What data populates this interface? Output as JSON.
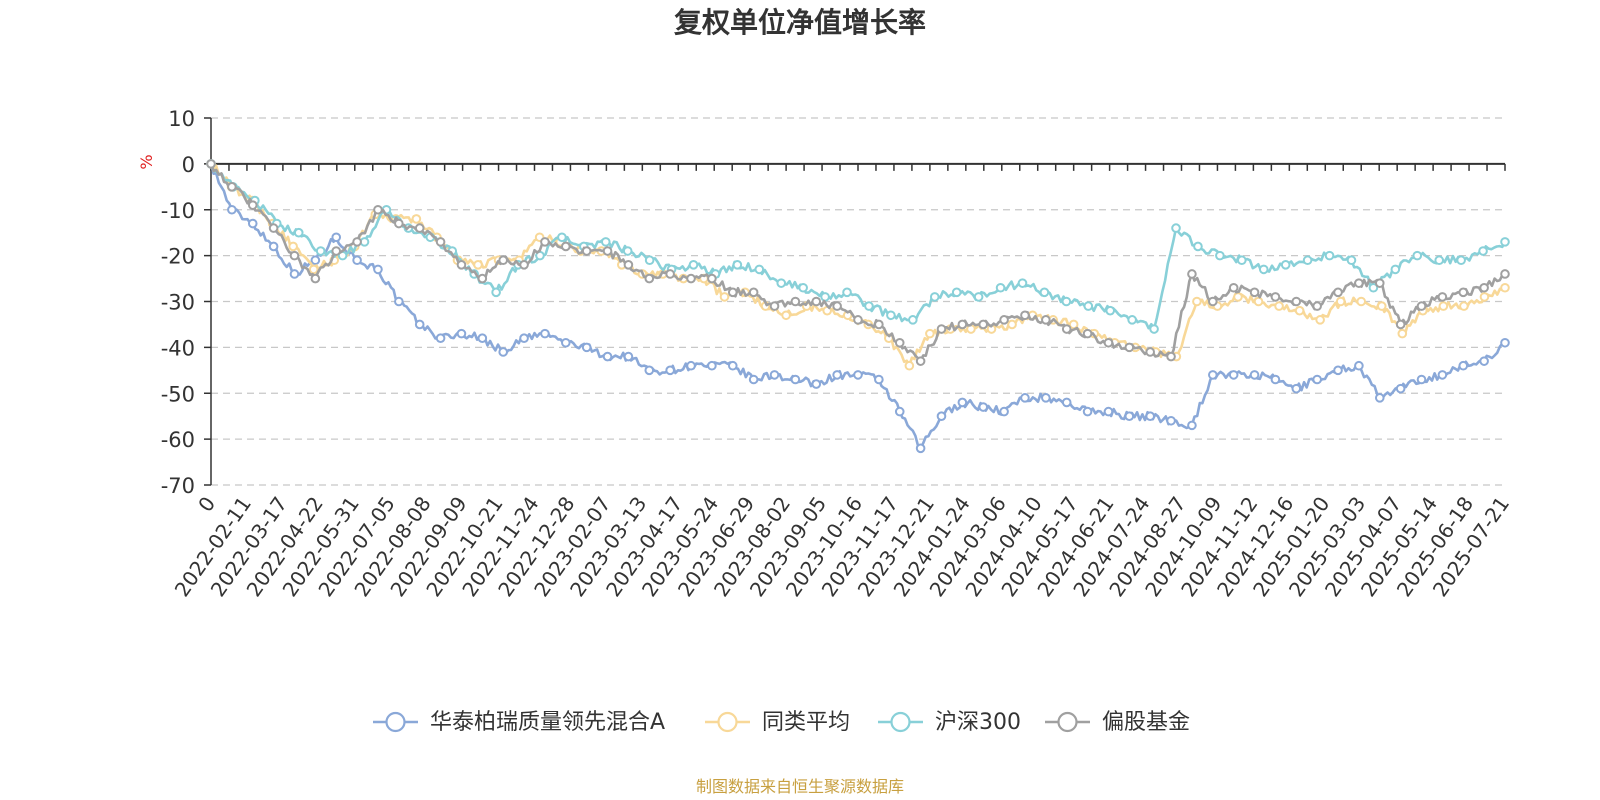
{
  "chart_data": {
    "type": "line",
    "title": "复权单位净值增长率",
    "y_unit": "%",
    "ylim": [
      -70,
      10
    ],
    "y_ticks": [
      "10",
      "0",
      "-10",
      "-20",
      "-30",
      "-40",
      "-50",
      "-60",
      "-70"
    ],
    "x_origin_label": "0",
    "x_tick_labels": [
      "2022-02-11",
      "2022-03-17",
      "2022-04-22",
      "2022-05-31",
      "2022-07-05",
      "2022-08-08",
      "2022-09-09",
      "2022-10-21",
      "2022-11-24",
      "2022-12-28",
      "2023-02-07",
      "2023-03-13",
      "2023-04-17",
      "2023-05-24",
      "2023-06-29",
      "2023-08-02",
      "2023-09-05",
      "2023-10-16",
      "2023-11-17",
      "2023-12-21",
      "2024-01-24",
      "2024-03-06",
      "2024-04-10",
      "2024-05-17",
      "2024-06-21",
      "2024-07-24",
      "2024-08-27",
      "2024-10-09",
      "2024-11-12",
      "2024-12-16",
      "2025-01-20",
      "2025-03-03",
      "2025-04-07",
      "2025-05-14",
      "2025-06-18",
      "2025-07-21"
    ],
    "grid": "horizontal-dashed",
    "legend_position": "bottom-center",
    "series": [
      {
        "name": "华泰柏瑞质量领先混合A",
        "color": "#8aa8d8",
        "values": [
          0,
          -10,
          -13,
          -18,
          -24,
          -21,
          -16,
          -21,
          -23,
          -30,
          -35,
          -38,
          -37,
          -38,
          -41,
          -38,
          -37,
          -39,
          -40,
          -42,
          -42,
          -45,
          -45,
          -44,
          -44,
          -44,
          -47,
          -46,
          -47,
          -48,
          -46,
          -46,
          -47,
          -54,
          -62,
          -55,
          -52,
          -53,
          -54,
          -51,
          -51,
          -52,
          -54,
          -54,
          -55,
          -55,
          -56,
          -57,
          -46,
          -46,
          -46,
          -47,
          -49,
          -47,
          -45,
          -44,
          -51,
          -49,
          -47,
          -46,
          -44,
          -43,
          -39
        ]
      },
      {
        "name": "同类平均",
        "color": "#f8d898",
        "values": [
          0,
          -5,
          -8,
          -13,
          -18,
          -23,
          -21,
          -18,
          -11,
          -12,
          -12,
          -16,
          -21,
          -22,
          -21,
          -21,
          -16,
          -17,
          -19,
          -19,
          -22,
          -24,
          -24,
          -25,
          -25,
          -29,
          -28,
          -31,
          -33,
          -31,
          -32,
          -33,
          -35,
          -38,
          -44,
          -37,
          -36,
          -36,
          -36,
          -35,
          -33,
          -34,
          -35,
          -37,
          -39,
          -40,
          -41,
          -42,
          -30,
          -31,
          -29,
          -30,
          -31,
          -32,
          -34,
          -30,
          -30,
          -31,
          -37,
          -32,
          -31,
          -31,
          -29,
          -27
        ]
      },
      {
        "name": "沪深300",
        "color": "#88d0d8",
        "values": [
          0,
          -5,
          -8,
          -13,
          -15,
          -19,
          -20,
          -17,
          -10,
          -14,
          -16,
          -19,
          -24,
          -28,
          -22,
          -20,
          -16,
          -18,
          -17,
          -19,
          -21,
          -23,
          -22,
          -24,
          -22,
          -23,
          -26,
          -27,
          -29,
          -28,
          -31,
          -33,
          -34,
          -29,
          -28,
          -29,
          -27,
          -26,
          -28,
          -30,
          -31,
          -32,
          -34,
          -36,
          -14,
          -18,
          -20,
          -21,
          -23,
          -22,
          -21,
          -20,
          -21,
          -27,
          -23,
          -20,
          -21,
          -21,
          -19,
          -17
        ]
      },
      {
        "name": "偏股基金",
        "color": "#a0a0a0",
        "values": [
          0,
          -5,
          -9,
          -14,
          -20,
          -25,
          -19,
          -17,
          -10,
          -13,
          -14,
          -17,
          -22,
          -25,
          -21,
          -22,
          -17,
          -18,
          -19,
          -19,
          -22,
          -25,
          -24,
          -25,
          -25,
          -28,
          -28,
          -31,
          -30,
          -30,
          -31,
          -34,
          -35,
          -39,
          -43,
          -36,
          -35,
          -35,
          -34,
          -33,
          -34,
          -36,
          -37,
          -39,
          -40,
          -41,
          -42,
          -24,
          -30,
          -27,
          -28,
          -29,
          -30,
          -31,
          -28,
          -26,
          -26,
          -35,
          -31,
          -29,
          -28,
          -27,
          -24
        ]
      }
    ]
  },
  "legend": {
    "items": [
      "华泰柏瑞质量领先混合A",
      "同类平均",
      "沪深300",
      "偏股基金"
    ]
  },
  "footer": {
    "source": "制图数据来自恒生聚源数据库"
  }
}
